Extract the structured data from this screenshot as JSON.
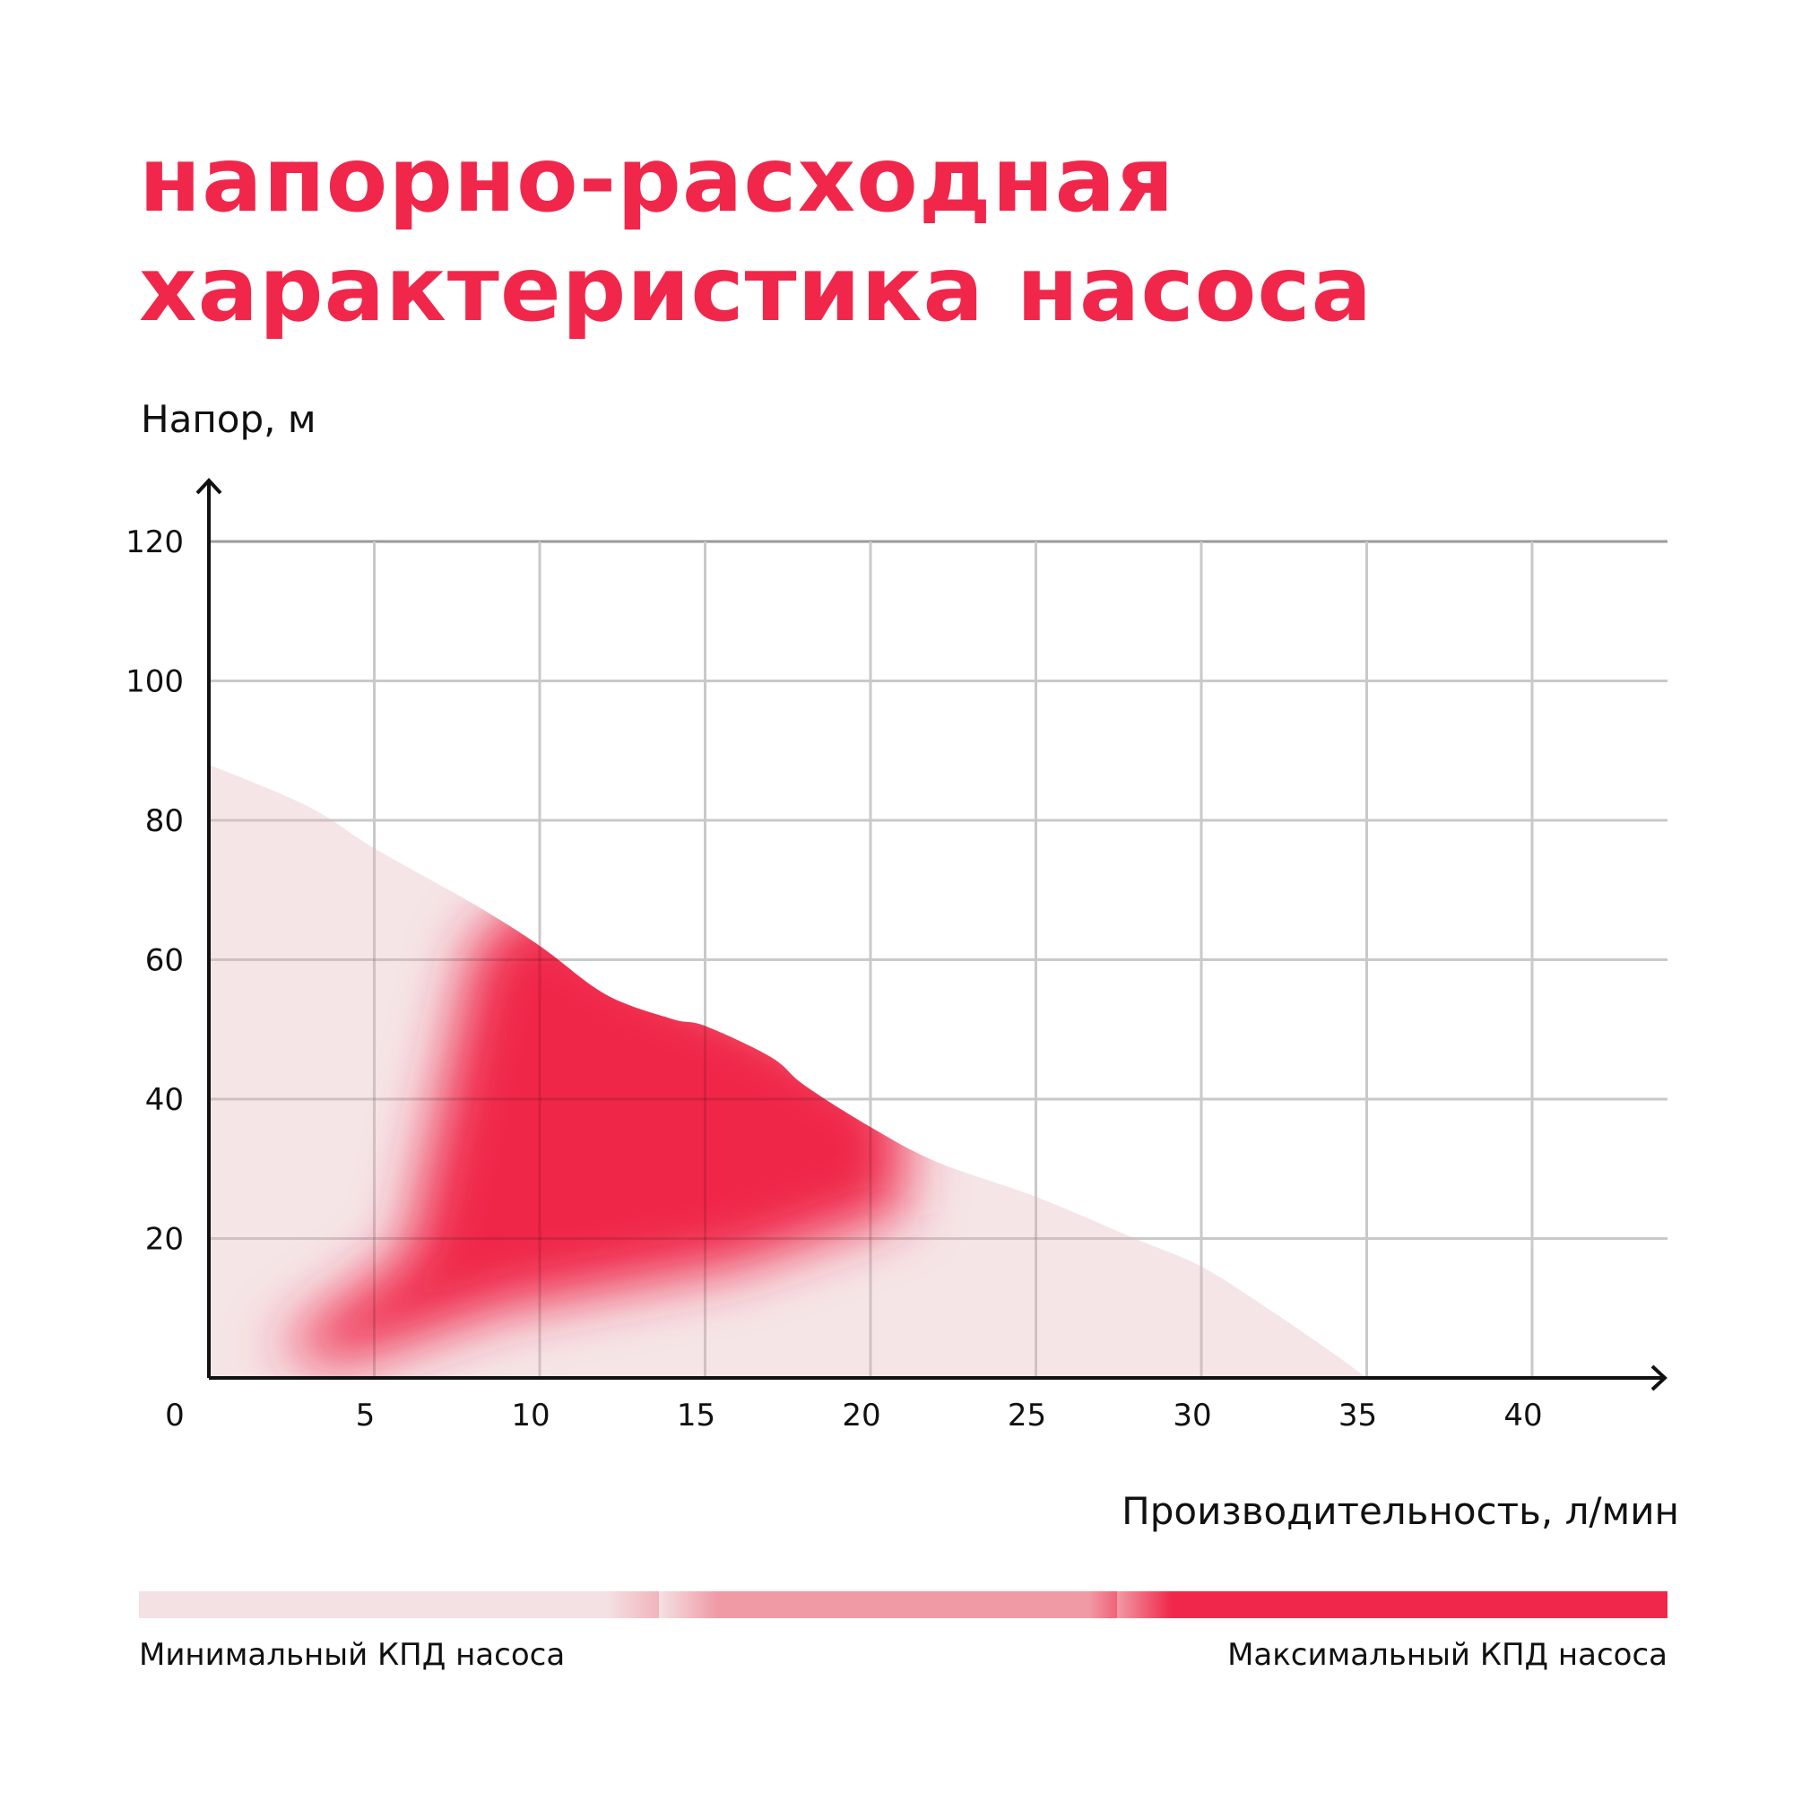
{
  "title_lines": [
    "напорно-расходная",
    "характеристика насоса"
  ],
  "colors": {
    "accent": "#f0274a",
    "mid": "#f09aa5",
    "light": "#f3e1e3",
    "grid": "#c9c9c9",
    "axis": "#111111"
  },
  "chart_data": {
    "type": "area",
    "title": "напорно-расходная характеристика насоса",
    "xlabel": "Производительность, л/мин",
    "ylabel": "Напор, м",
    "xlim": [
      0,
      44
    ],
    "ylim": [
      0,
      120
    ],
    "x_ticks": [
      0,
      5,
      10,
      15,
      20,
      25,
      30,
      35,
      40
    ],
    "y_ticks": [
      20,
      40,
      60,
      80,
      100,
      120
    ],
    "grid": true,
    "series": [
      {
        "x": [
          0,
          3,
          5,
          8,
          10,
          12,
          14,
          15,
          17,
          18,
          20,
          22,
          25,
          28,
          30,
          32,
          34,
          35
        ],
        "y": [
          88,
          82,
          76,
          68,
          62,
          55,
          51.5,
          50.5,
          46,
          42,
          36,
          31,
          26,
          20,
          16,
          10,
          3.5,
          0
        ]
      }
    ],
    "legend": {
      "min_label": "Минимальный КПД насоса",
      "max_label": "Максимальный КПД насоса"
    }
  }
}
